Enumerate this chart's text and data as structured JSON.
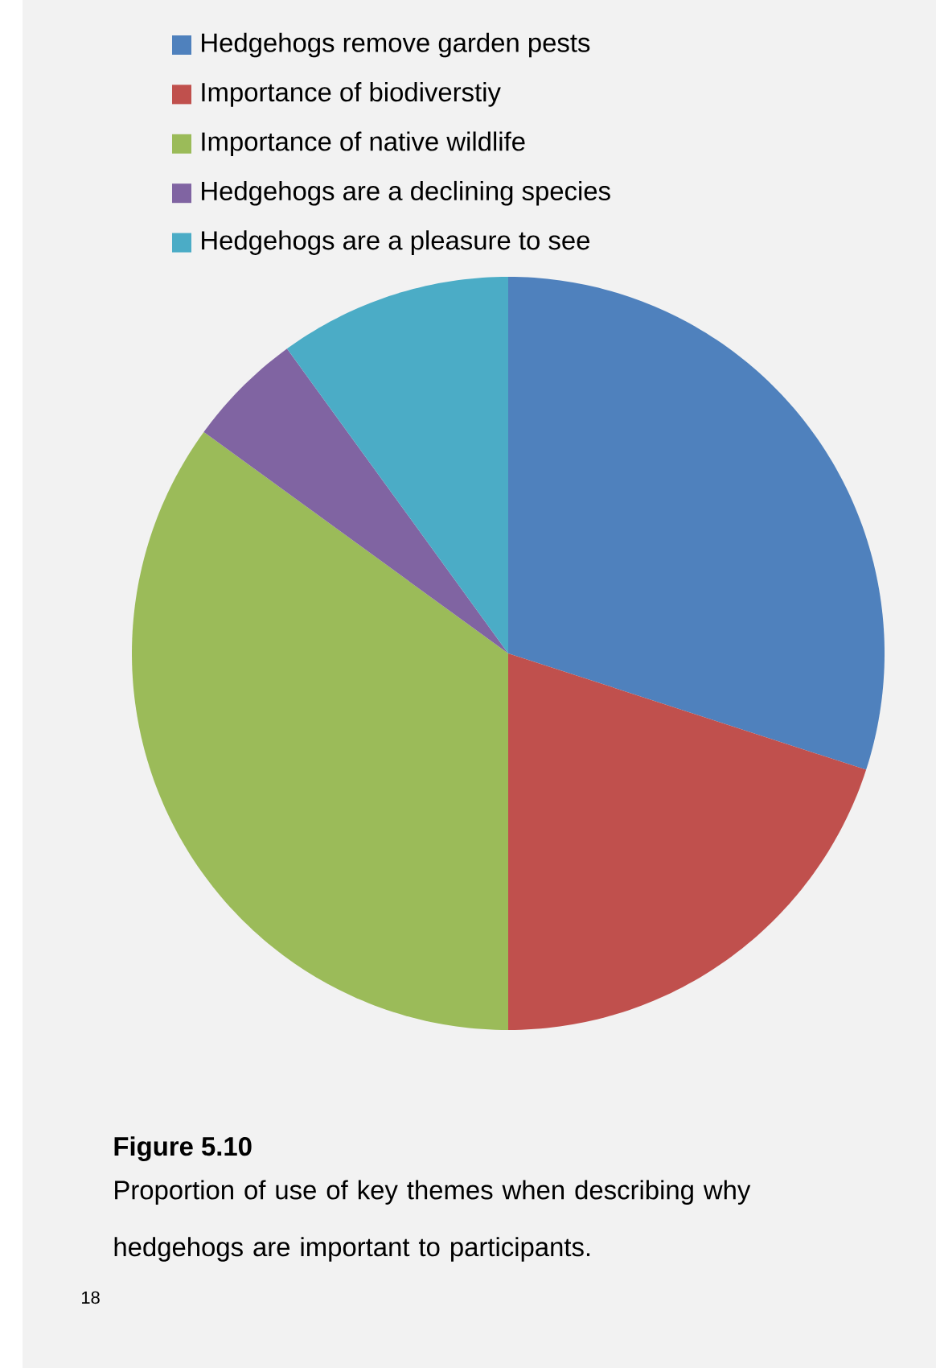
{
  "chart_data": {
    "type": "pie",
    "title": "Figure 5.10",
    "subtitle": "Proportion of use of key themes when describing why hedgehogs are important to participants.",
    "categories": [
      "Hedgehogs remove garden pests",
      "Importance of biodiverstiy",
      "Importance of native wildlife",
      "Hedgehogs are a declining species",
      "Hedgehogs are a pleasure to see"
    ],
    "values": [
      30,
      20,
      35,
      5,
      10
    ],
    "colors": [
      "#4f81bd",
      "#c0504d",
      "#9bbb59",
      "#8064a2",
      "#4bacc6"
    ],
    "legend": "top",
    "annotations": [
      "18"
    ]
  }
}
